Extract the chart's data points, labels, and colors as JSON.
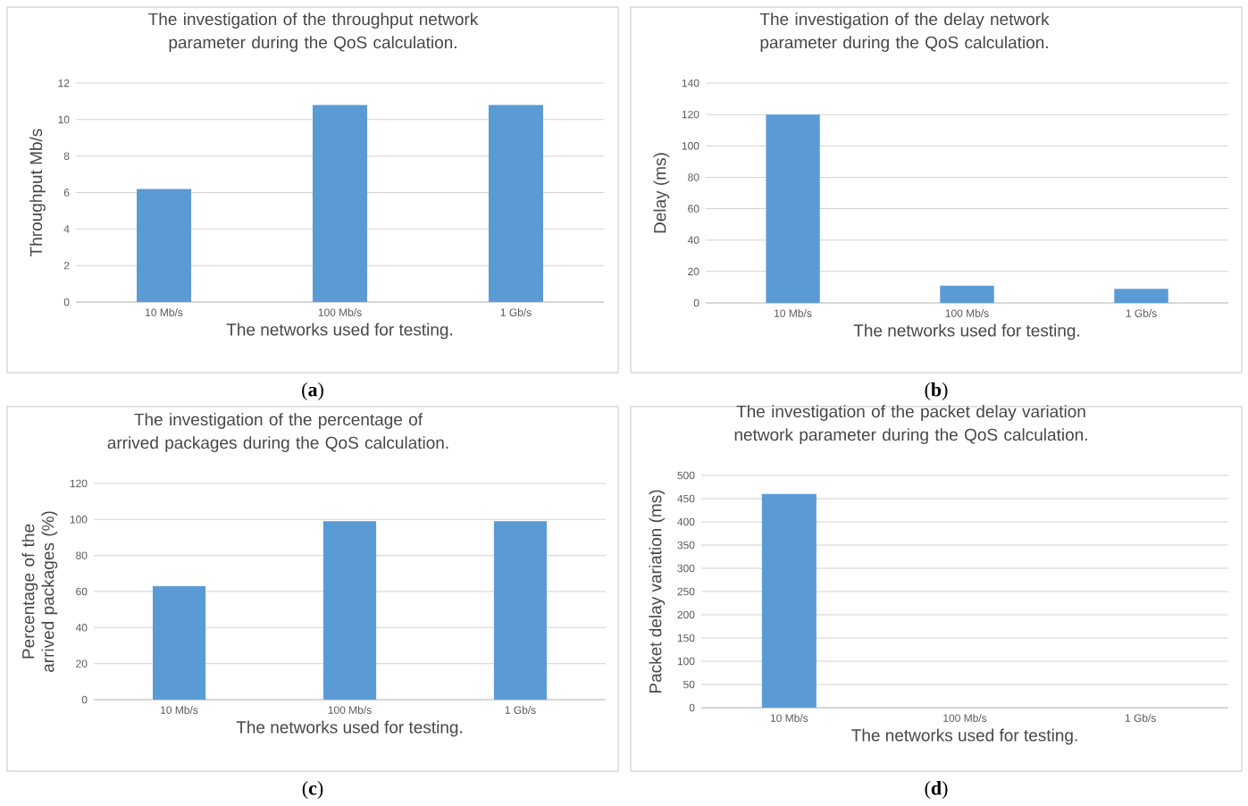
{
  "chart_data": [
    {
      "type": "bar",
      "title": "The investigation of the throughput network parameter during the QoS calculation.",
      "xlabel": "The networks used for testing.",
      "ylabel": "Throughput Mb/s",
      "categories": [
        "10 Mb/s",
        "100 Mb/s",
        "1 Gb/s"
      ],
      "values": [
        6.2,
        10.8,
        10.8
      ],
      "color": "#5b9bd5",
      "ylim": [
        0,
        12
      ],
      "yticks": [
        0,
        2,
        4,
        6,
        8,
        10,
        12
      ],
      "grid": "y",
      "annotations": [
        "(**a**)"
      ]
    },
    {
      "type": "bar",
      "title": "The investigation of the delay network parameter during the QoS calculation.",
      "xlabel": "The networks used for testing.",
      "ylabel": "Delay (ms)",
      "categories": [
        "10 Mb/s",
        "100 Mb/s",
        "1 Gb/s"
      ],
      "values": [
        120,
        11,
        9
      ],
      "color": "#5b9bd5",
      "ylim": [
        0,
        140
      ],
      "yticks": [
        0,
        20,
        40,
        60,
        80,
        100,
        120,
        140
      ],
      "grid": "y",
      "annotations": [
        "(**b**)"
      ]
    },
    {
      "type": "bar",
      "title": "The investigation of the percentage of arrived packages during the QoS calculation.",
      "xlabel": "The networks used for testing.",
      "ylabel": "Percentage of the arrived packages (%)",
      "categories": [
        "10 Mb/s",
        "100 Mb/s",
        "1 Gb/s"
      ],
      "values": [
        63,
        99,
        99
      ],
      "color": "#5b9bd5",
      "ylim": [
        0,
        120
      ],
      "yticks": [
        0,
        20,
        40,
        60,
        80,
        100,
        120
      ],
      "grid": "y",
      "annotations": [
        "(**c**)"
      ]
    },
    {
      "type": "bar",
      "title": "The investigation of the packet delay variation network parameter during the QoS calculation.",
      "xlabel": "The networks used for testing.",
      "ylabel": "Packet delay variation (ms)",
      "categories": [
        "10 Mb/s",
        "100 Mb/s",
        "1 Gb/s"
      ],
      "values": [
        460,
        0,
        0
      ],
      "color": "#5b9bd5",
      "ylim": [
        0,
        500
      ],
      "yticks": [
        0,
        50,
        100,
        150,
        200,
        250,
        300,
        350,
        400,
        450,
        500
      ],
      "grid": "y",
      "annotations": [
        "(**d**)"
      ]
    }
  ]
}
